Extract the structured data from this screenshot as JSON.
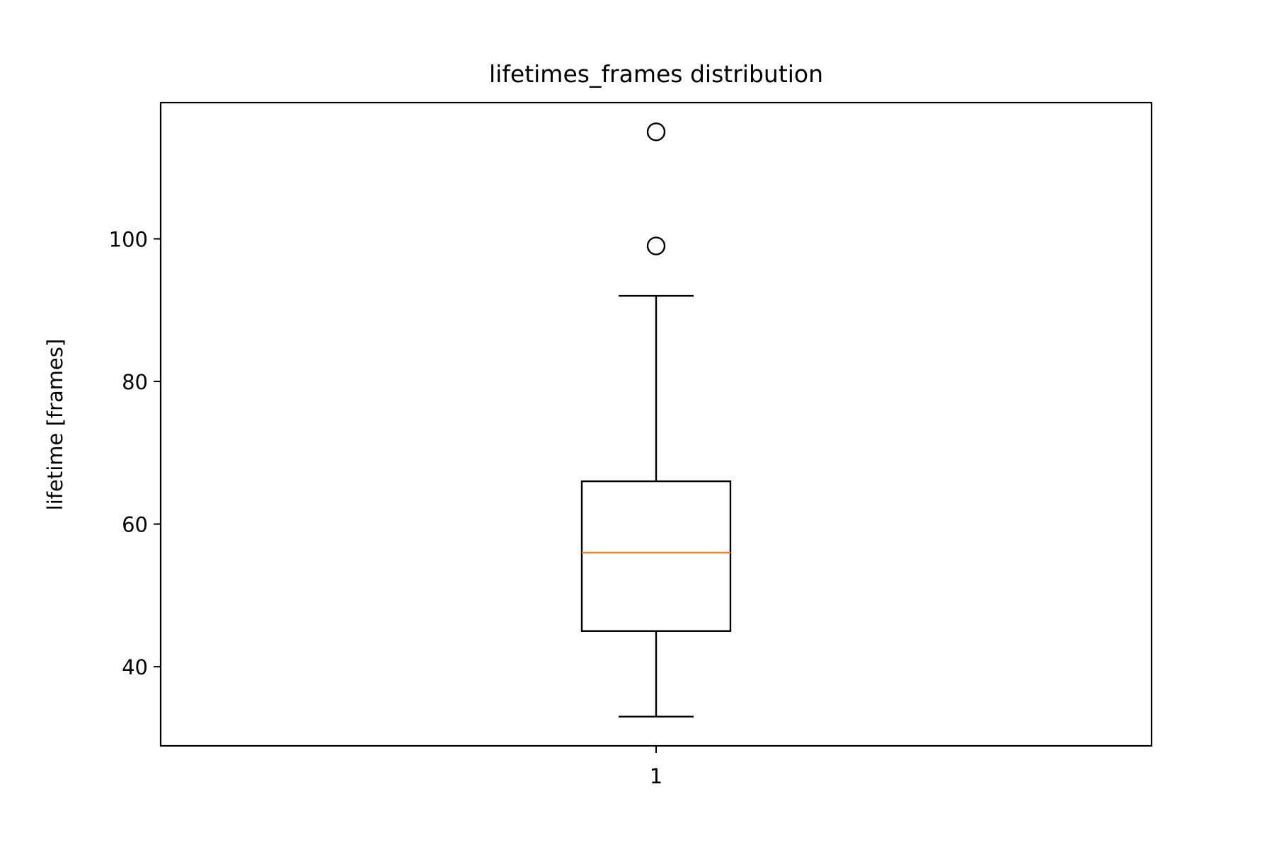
{
  "chart_data": {
    "type": "box",
    "title": "lifetimes_frames distribution",
    "xlabel": "",
    "ylabel": "lifetime [frames]",
    "categories": [
      "1"
    ],
    "boxes": [
      {
        "category": "1",
        "whisker_low": 33,
        "q1": 45,
        "median": 56,
        "q3": 66,
        "whisker_high": 92,
        "outliers": [
          99,
          115
        ]
      }
    ],
    "ylim": [
      28.9,
      119.1
    ],
    "yticks": [
      40,
      60,
      80,
      100
    ],
    "ytick_labels": [
      "40",
      "60",
      "80",
      "100"
    ],
    "grid": false,
    "colors": {
      "box": "#000000",
      "median": "#ff7f0e",
      "outlier": "#000000"
    }
  }
}
